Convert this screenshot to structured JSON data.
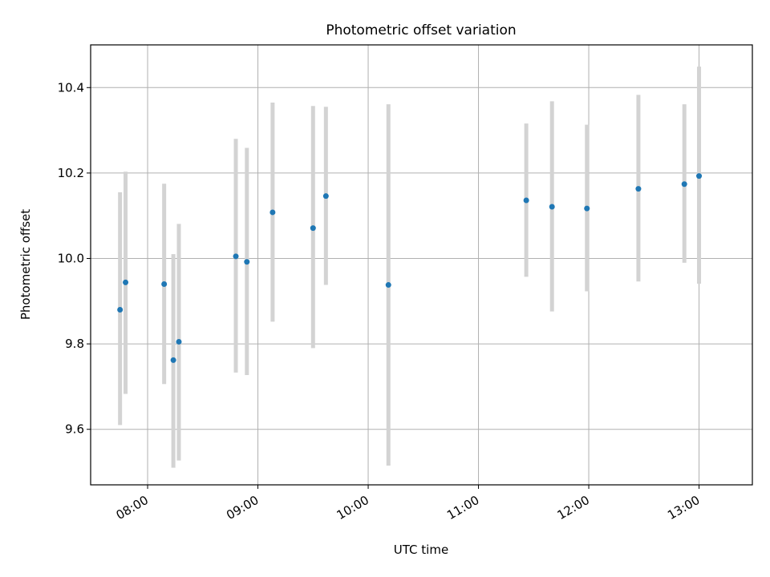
{
  "chart_data": {
    "type": "scatter",
    "title": "Photometric offset variation",
    "xlabel": "UTC time",
    "ylabel": "Photometric offset",
    "x_ticks": [
      "08:00",
      "09:00",
      "10:00",
      "11:00",
      "12:00",
      "13:00"
    ],
    "y_ticks": [
      "9.6",
      "9.8",
      "10.0",
      "10.2",
      "10.4"
    ],
    "xlim": [
      "07:29",
      "13:29"
    ],
    "ylim": [
      9.47,
      10.5
    ],
    "grid": true,
    "series": [
      {
        "points": [
          {
            "x": "07:45",
            "y": 9.88,
            "err_low": 9.61,
            "err_high": 10.155
          },
          {
            "x": "07:48",
            "y": 9.944,
            "err_low": 9.683,
            "err_high": 10.203
          },
          {
            "x": "08:09",
            "y": 9.94,
            "err_low": 9.706,
            "err_high": 10.175
          },
          {
            "x": "08:14",
            "y": 9.762,
            "err_low": 9.51,
            "err_high": 10.01
          },
          {
            "x": "08:17",
            "y": 9.805,
            "err_low": 9.527,
            "err_high": 10.081
          },
          {
            "x": "08:48",
            "y": 10.005,
            "err_low": 9.733,
            "err_high": 10.28
          },
          {
            "x": "08:54",
            "y": 9.992,
            "err_low": 9.727,
            "err_high": 10.259
          },
          {
            "x": "09:08",
            "y": 10.108,
            "err_low": 9.852,
            "err_high": 10.365
          },
          {
            "x": "09:30",
            "y": 10.071,
            "err_low": 9.79,
            "err_high": 10.357
          },
          {
            "x": "09:37",
            "y": 10.146,
            "err_low": 9.938,
            "err_high": 10.355
          },
          {
            "x": "10:11",
            "y": 9.938,
            "err_low": 9.515,
            "err_high": 10.361
          },
          {
            "x": "11:26",
            "y": 10.136,
            "err_low": 9.957,
            "err_high": 10.316
          },
          {
            "x": "11:40",
            "y": 10.121,
            "err_low": 9.876,
            "err_high": 10.368
          },
          {
            "x": "11:59",
            "y": 10.117,
            "err_low": 9.923,
            "err_high": 10.313
          },
          {
            "x": "12:27",
            "y": 10.163,
            "err_low": 9.946,
            "err_high": 10.383
          },
          {
            "x": "12:52",
            "y": 10.174,
            "err_low": 9.99,
            "err_high": 10.361
          },
          {
            "x": "13:00",
            "y": 10.193,
            "err_low": 9.941,
            "err_high": 10.449
          }
        ]
      }
    ],
    "colors": {
      "marker": "#1f77b4",
      "errorbar": "#d3d3d3",
      "grid": "#b0b0b0",
      "axes": "#000000"
    }
  }
}
